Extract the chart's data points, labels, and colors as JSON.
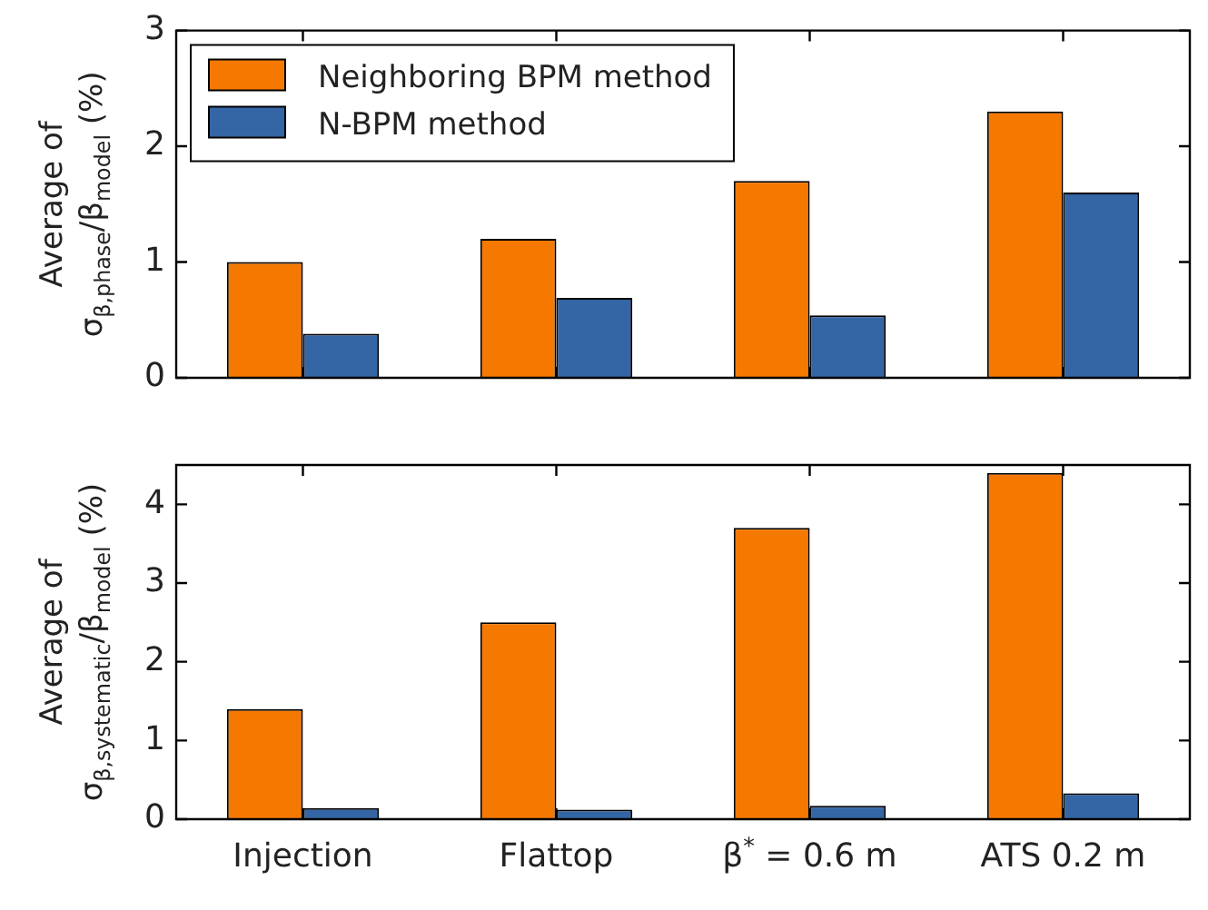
{
  "chart_data": [
    {
      "type": "bar",
      "ylabel": "Average of\nσ$_{β,phase}$/β$_{model}$ (%)",
      "categories": [
        null,
        null,
        null,
        null
      ],
      "series": [
        {
          "name": "Neighboring BPM method",
          "color": "#f57900",
          "values": [
            1.0,
            1.2,
            1.7,
            2.3
          ]
        },
        {
          "name": "N-BPM method",
          "color": "#3465a4",
          "values": [
            0.38,
            0.69,
            0.54,
            1.6
          ]
        }
      ],
      "ylim": [
        0,
        3
      ],
      "yticks": [
        0,
        1,
        2,
        3
      ],
      "legend": "top left",
      "tick_labels": "y"
    },
    {
      "type": "bar",
      "ylabel": "Average of\nσ$_{β,systematic}$/β$_{model}$ (%)",
      "categories": [
        "Injection",
        "Flattop",
        "β$^{*}$ = 0.6 m",
        "ATS 0.2 m"
      ],
      "series": [
        {
          "color": "#f57900",
          "values": [
            1.4,
            2.5,
            3.7,
            4.4
          ]
        },
        {
          "color": "#3465a4",
          "values": [
            0.14,
            0.12,
            0.17,
            0.33
          ]
        }
      ],
      "ylim": [
        0,
        4.5
      ],
      "yticks": [
        0,
        1,
        2,
        3,
        4
      ]
    }
  ]
}
